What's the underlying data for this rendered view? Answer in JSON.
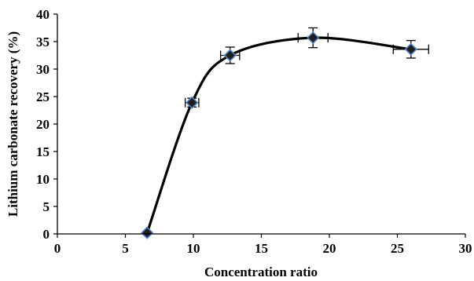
{
  "chart_data": {
    "type": "scatter",
    "title": "",
    "xlabel": "Concentration ratio",
    "ylabel": "Lithium carbonate recovery (%)",
    "xlim": [
      0,
      30
    ],
    "ylim": [
      0,
      40
    ],
    "xticks": [
      0,
      5,
      10,
      15,
      20,
      25,
      30
    ],
    "yticks": [
      0,
      5,
      10,
      15,
      20,
      25,
      30,
      35,
      40
    ],
    "grid": false,
    "legend": "none",
    "smooth_line": true,
    "series": [
      {
        "x": [
          6.6,
          9.9,
          12.7,
          18.8,
          26.0
        ],
        "y": [
          0.2,
          23.9,
          32.5,
          35.7,
          33.6
        ],
        "y_err": [
          0,
          0.8,
          1.5,
          1.8,
          1.6
        ],
        "x_err": [
          0,
          0.5,
          0.7,
          1.1,
          1.3
        ]
      }
    ],
    "colors": {
      "marker_fill": "#1f1f1f",
      "marker_edge": "#4f81bd",
      "line": "#000000",
      "axis": "#000000"
    }
  }
}
